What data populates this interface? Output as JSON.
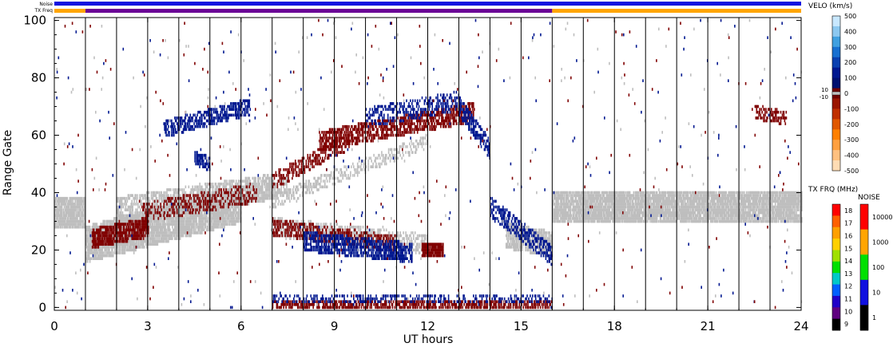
{
  "status_strips": {
    "noise_label": "Noise",
    "txfreq_label": "TX Freq",
    "noise_segments": [
      {
        "from": 0,
        "to": 24,
        "color": "#1010e0"
      }
    ],
    "txfreq_segments": [
      {
        "from": 0,
        "to": 1,
        "color": "#ffa500"
      },
      {
        "from": 1,
        "to": 16,
        "color": "#6a0096"
      },
      {
        "from": 16,
        "to": 24,
        "color": "#ffa500"
      }
    ]
  },
  "chart_data": {
    "type": "heatmap",
    "title": "",
    "xlabel": "UT hours",
    "ylabel": "Range Gate",
    "xlim": [
      0,
      24
    ],
    "ylim": [
      -1,
      101
    ],
    "x_ticks": [
      0,
      3,
      6,
      9,
      12,
      15,
      18,
      21,
      24
    ],
    "x_tick_labels": [
      "0",
      "3",
      "6",
      "9",
      "12",
      "15",
      "18",
      "21",
      "24"
    ],
    "y_ticks": [
      0,
      20,
      40,
      60,
      80,
      100
    ],
    "y_tick_labels": [
      "0",
      "20",
      "40",
      "60",
      "80",
      "100"
    ],
    "scan_boundaries_ut": [
      1,
      2,
      3,
      4,
      5,
      6,
      7,
      8,
      9,
      10,
      11,
      12,
      13,
      14,
      15,
      16,
      17,
      18,
      19,
      20,
      21,
      22,
      23
    ],
    "velocity_scale": {
      "label": "VELO (km/s)",
      "tick_labels": [
        "500",
        "400",
        "300",
        "200",
        "100",
        "0",
        "-100",
        "-200",
        "-300",
        "-400",
        "-500"
      ],
      "gs_labels": [
        "10",
        "-10"
      ],
      "colors_top_to_bottom": [
        "#c8e8ff",
        "#8cc8f0",
        "#40a0e0",
        "#1870d0",
        "#0a40b0",
        "#001890",
        "#001070",
        "#700000",
        "#9a1500",
        "#c03000",
        "#e05800",
        "#ff8000",
        "#ffa040",
        "#ffc080",
        "#ffdcb4"
      ]
    },
    "txfreq_scale": {
      "label": "TX FRQ (MHz)",
      "tick_labels": [
        "18",
        "17",
        "16",
        "15",
        "14",
        "13",
        "12",
        "11",
        "10",
        "9"
      ],
      "colors_top_to_bottom": [
        "#ff0000",
        "#ff6000",
        "#ffa000",
        "#ffd000",
        "#a0e000",
        "#00e000",
        "#00c8c8",
        "#0060ff",
        "#2000c8",
        "#600080",
        "#000000"
      ]
    },
    "noise_scale": {
      "label": "NOISE",
      "tick_labels": [
        "10000",
        "1000",
        "100",
        "10",
        "1"
      ],
      "colors_top_to_bottom": [
        "#ff0000",
        "#ffa500",
        "#00e000",
        "#1010e0",
        "#000000"
      ]
    },
    "categories": {
      "ground_scatter": "#bebebe",
      "toward_radar": "#001890",
      "away_from_radar": "#800000"
    },
    "scatter_bands": [
      {
        "name": "ground",
        "kind": "ground_scatter",
        "t0": 0,
        "t1": 1,
        "c0": 33,
        "c1": 33,
        "w": 10,
        "d": 0.85
      },
      {
        "name": "ground",
        "kind": "ground_scatter",
        "t0": 1,
        "t1": 6,
        "c0": 22,
        "c1": 36,
        "w": 12,
        "d": 0.85
      },
      {
        "name": "ground",
        "kind": "ground_scatter",
        "t0": 2,
        "t1": 7,
        "c0": 34,
        "c1": 42,
        "w": 8,
        "d": 0.55
      },
      {
        "name": "ground",
        "kind": "ground_scatter",
        "t0": 6,
        "t1": 7.5,
        "c0": 39,
        "c1": 42,
        "w": 6,
        "d": 0.5
      },
      {
        "name": "ground",
        "kind": "ground_scatter",
        "t0": 7,
        "t1": 12,
        "c0": 37,
        "c1": 58,
        "w": 4,
        "d": 0.35
      },
      {
        "name": "ground",
        "kind": "ground_scatter",
        "t0": 7,
        "t1": 12,
        "c0": 28,
        "c1": 22,
        "w": 6,
        "d": 0.4
      },
      {
        "name": "ground",
        "kind": "ground_scatter",
        "t0": 14.5,
        "t1": 16,
        "c0": 25,
        "c1": 22,
        "w": 8,
        "d": 0.7
      },
      {
        "name": "ground",
        "kind": "ground_scatter",
        "t0": 16,
        "t1": 24,
        "c0": 35,
        "c1": 35,
        "w": 10,
        "d": 0.85
      },
      {
        "name": "away",
        "kind": "away_from_radar",
        "t0": 1.2,
        "t1": 3,
        "c0": 24,
        "c1": 28,
        "w": 6,
        "d": 0.75
      },
      {
        "name": "away",
        "kind": "away_from_radar",
        "t0": 2.8,
        "t1": 6.5,
        "c0": 33,
        "c1": 40,
        "w": 6,
        "d": 0.35
      },
      {
        "name": "away",
        "kind": "away_from_radar",
        "t0": 7,
        "t1": 11,
        "c0": 28,
        "c1": 22,
        "w": 5,
        "d": 0.4
      },
      {
        "name": "away",
        "kind": "away_from_radar",
        "t0": 7,
        "t1": 9.5,
        "c0": 44,
        "c1": 58,
        "w": 5,
        "d": 0.4
      },
      {
        "name": "away",
        "kind": "away_from_radar",
        "t0": 8.5,
        "t1": 13.5,
        "c0": 58,
        "c1": 68,
        "w": 6,
        "d": 0.55
      },
      {
        "name": "away",
        "kind": "away_from_radar",
        "t0": 11.8,
        "t1": 12.5,
        "c0": 20,
        "c1": 20,
        "w": 4,
        "d": 0.9
      },
      {
        "name": "away",
        "kind": "away_from_radar",
        "t0": 22.5,
        "t1": 23.5,
        "c0": 68,
        "c1": 66,
        "w": 4,
        "d": 0.45
      },
      {
        "name": "away",
        "kind": "away_from_radar",
        "t0": 7,
        "t1": 16,
        "c0": 1,
        "c1": 1,
        "w": 2,
        "d": 0.55
      },
      {
        "name": "toward",
        "kind": "toward_radar",
        "t0": 3.5,
        "t1": 6.3,
        "c0": 62,
        "c1": 70,
        "w": 5,
        "d": 0.55
      },
      {
        "name": "toward",
        "kind": "toward_radar",
        "t0": 4.5,
        "t1": 5,
        "c0": 52,
        "c1": 50,
        "w": 4,
        "d": 0.7
      },
      {
        "name": "toward",
        "kind": "toward_radar",
        "t0": 8,
        "t1": 11.5,
        "c0": 23,
        "c1": 19,
        "w": 6,
        "d": 0.6
      },
      {
        "name": "toward",
        "kind": "toward_radar",
        "t0": 10,
        "t1": 13,
        "c0": 66,
        "c1": 72,
        "w": 6,
        "d": 0.35
      },
      {
        "name": "toward",
        "kind": "toward_radar",
        "t0": 13,
        "t1": 14,
        "c0": 70,
        "c1": 55,
        "w": 6,
        "d": 0.55
      },
      {
        "name": "toward",
        "kind": "toward_radar",
        "t0": 14,
        "t1": 16,
        "c0": 35,
        "c1": 18,
        "w": 6,
        "d": 0.45
      },
      {
        "name": "toward",
        "kind": "toward_radar",
        "t0": 7,
        "t1": 16,
        "c0": 3,
        "c1": 3,
        "w": 2,
        "d": 0.25
      }
    ]
  }
}
